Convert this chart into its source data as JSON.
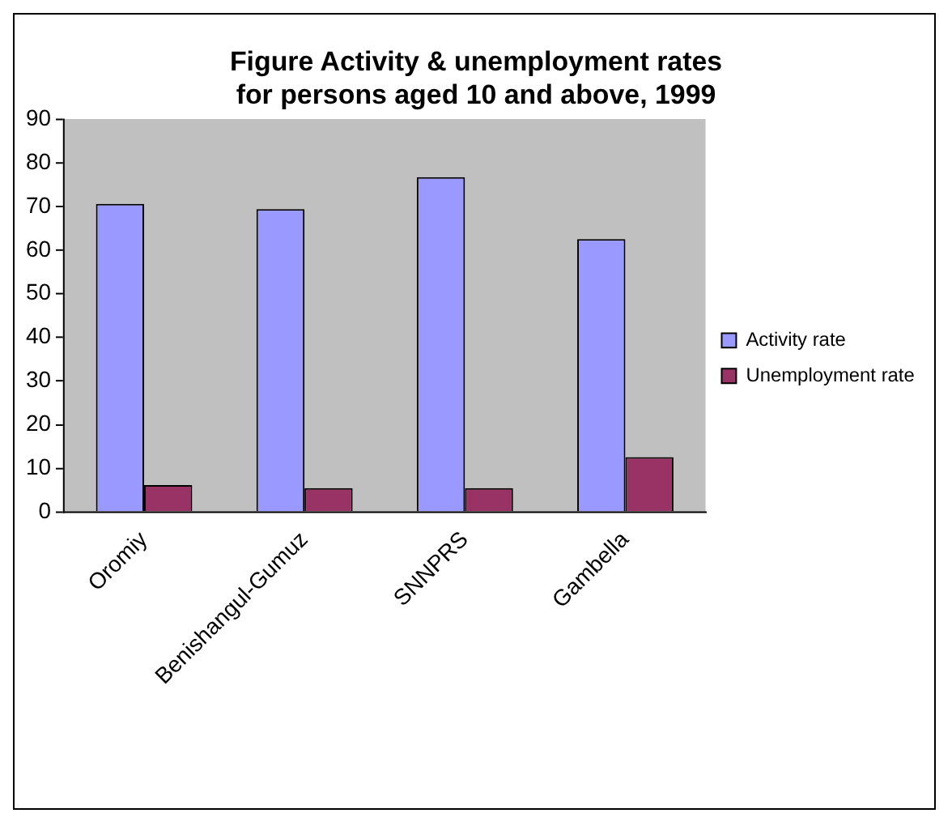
{
  "chart_data": {
    "type": "bar",
    "title": "Figure Activity & unemployment rates\nfor persons aged 10 and above, 1999",
    "categories": [
      "Oromiy",
      "Benishangul-Gumuz",
      "SNNPRS",
      "Gambella"
    ],
    "series": [
      {
        "name": "Activity rate",
        "color": "#9999ff",
        "values": [
          70.6,
          69.4,
          76.7,
          62.5
        ]
      },
      {
        "name": "Unemployment rate",
        "color": "#993366",
        "values": [
          6.2,
          5.5,
          5.5,
          12.6
        ]
      }
    ],
    "ylim": [
      0,
      90
    ],
    "yticks": [
      0,
      10,
      20,
      30,
      40,
      50,
      60,
      70,
      80,
      90
    ],
    "grid": false,
    "legend": "right"
  }
}
